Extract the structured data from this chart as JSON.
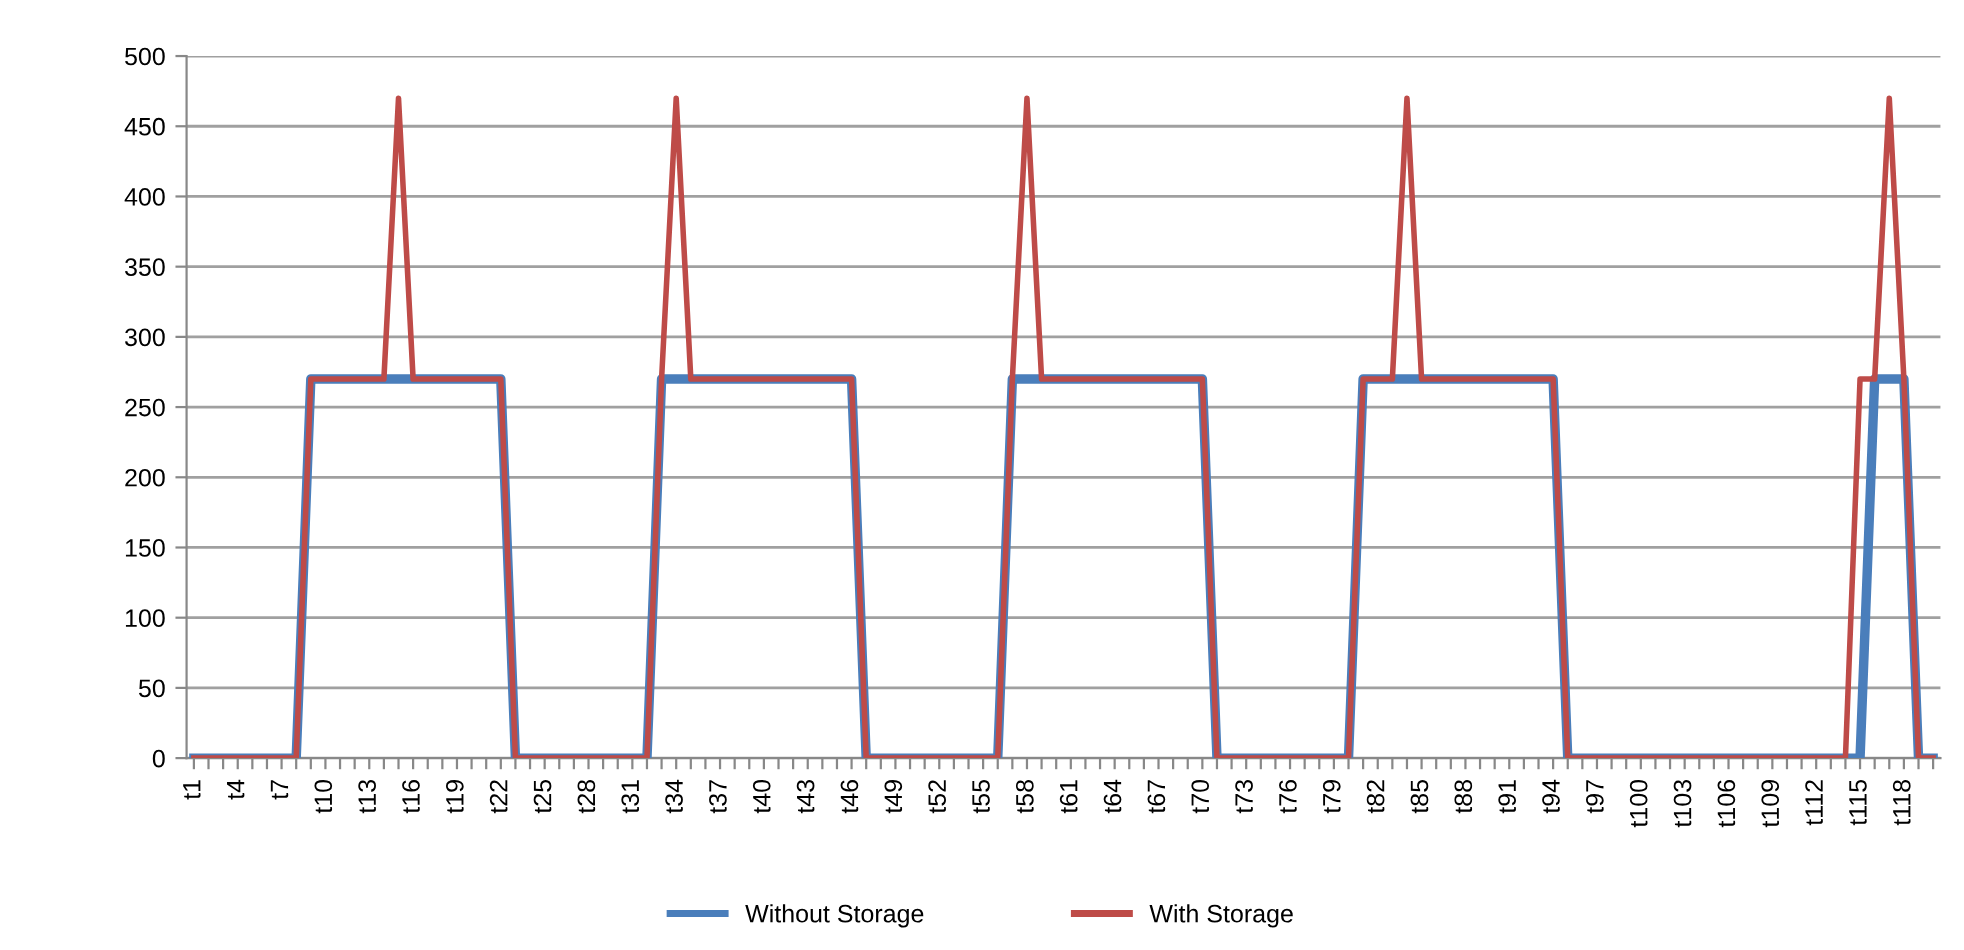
{
  "chart_data": {
    "type": "line",
    "categories": [
      "t1",
      null,
      null,
      "t4",
      null,
      null,
      "t7",
      null,
      null,
      "t10",
      null,
      null,
      "t13",
      null,
      null,
      "t16",
      null,
      null,
      "t19",
      null,
      null,
      "t22",
      null,
      null,
      "t25",
      null,
      null,
      "t28",
      null,
      null,
      "t31",
      null,
      null,
      "t34",
      null,
      null,
      "t37",
      null,
      null,
      "t40",
      null,
      null,
      "t43",
      null,
      null,
      "t46",
      null,
      null,
      "t49",
      null,
      null,
      "t52",
      null,
      null,
      "t55",
      null,
      null,
      "t58",
      null,
      null,
      "t61",
      null,
      null,
      "t64",
      null,
      null,
      "t67",
      null,
      null,
      "t70",
      null,
      null,
      "t73",
      null,
      null,
      "t76",
      null,
      null,
      "t79",
      null,
      null,
      "t82",
      null,
      null,
      "t85",
      null,
      null,
      "t88",
      null,
      null,
      "t91",
      null,
      null,
      "t94",
      null,
      null,
      "t97",
      null,
      null,
      "t100",
      null,
      null,
      "t103",
      null,
      null,
      "t106",
      null,
      null,
      "t109",
      null,
      null,
      "t112",
      null,
      null,
      "t115",
      null,
      null,
      "t118",
      null,
      null
    ],
    "series": [
      {
        "name": "Without Storage",
        "color": "#4a7ebb",
        "values": [
          0,
          0,
          0,
          0,
          0,
          0,
          0,
          0,
          270,
          270,
          270,
          270,
          270,
          270,
          270,
          270,
          270,
          270,
          270,
          270,
          270,
          270,
          0,
          0,
          0,
          0,
          0,
          0,
          0,
          0,
          0,
          0,
          270,
          270,
          270,
          270,
          270,
          270,
          270,
          270,
          270,
          270,
          270,
          270,
          270,
          270,
          0,
          0,
          0,
          0,
          0,
          0,
          0,
          0,
          0,
          0,
          270,
          270,
          270,
          270,
          270,
          270,
          270,
          270,
          270,
          270,
          270,
          270,
          270,
          270,
          0,
          0,
          0,
          0,
          0,
          0,
          0,
          0,
          0,
          0,
          270,
          270,
          270,
          270,
          270,
          270,
          270,
          270,
          270,
          270,
          270,
          270,
          270,
          270,
          0,
          0,
          0,
          0,
          0,
          0,
          0,
          0,
          0,
          0,
          0,
          0,
          0,
          0,
          0,
          0,
          0,
          0,
          0,
          0,
          0,
          270,
          270,
          270,
          0,
          0
        ]
      },
      {
        "name": "With Storage",
        "color": "#be4b48",
        "values": [
          0,
          0,
          0,
          0,
          0,
          0,
          0,
          0,
          270,
          270,
          270,
          270,
          270,
          270,
          470,
          270,
          270,
          270,
          270,
          270,
          270,
          270,
          0,
          0,
          0,
          0,
          0,
          0,
          0,
          0,
          0,
          0,
          270,
          470,
          270,
          270,
          270,
          270,
          270,
          270,
          270,
          270,
          270,
          270,
          270,
          270,
          0,
          0,
          0,
          0,
          0,
          0,
          0,
          0,
          0,
          0,
          270,
          470,
          270,
          270,
          270,
          270,
          270,
          270,
          270,
          270,
          270,
          270,
          270,
          270,
          0,
          0,
          0,
          0,
          0,
          0,
          0,
          0,
          0,
          0,
          270,
          270,
          270,
          470,
          270,
          270,
          270,
          270,
          270,
          270,
          270,
          270,
          270,
          270,
          0,
          0,
          0,
          0,
          0,
          0,
          0,
          0,
          0,
          0,
          0,
          0,
          0,
          0,
          0,
          0,
          0,
          0,
          0,
          0,
          270,
          270,
          470,
          270,
          0,
          0
        ]
      }
    ],
    "ylim": [
      0,
      500
    ],
    "yticks": [
      0,
      50,
      100,
      150,
      200,
      250,
      300,
      350,
      400,
      450,
      500
    ],
    "grid": "y",
    "legend": "bottom",
    "marker": "none",
    "line_style": "solid"
  }
}
